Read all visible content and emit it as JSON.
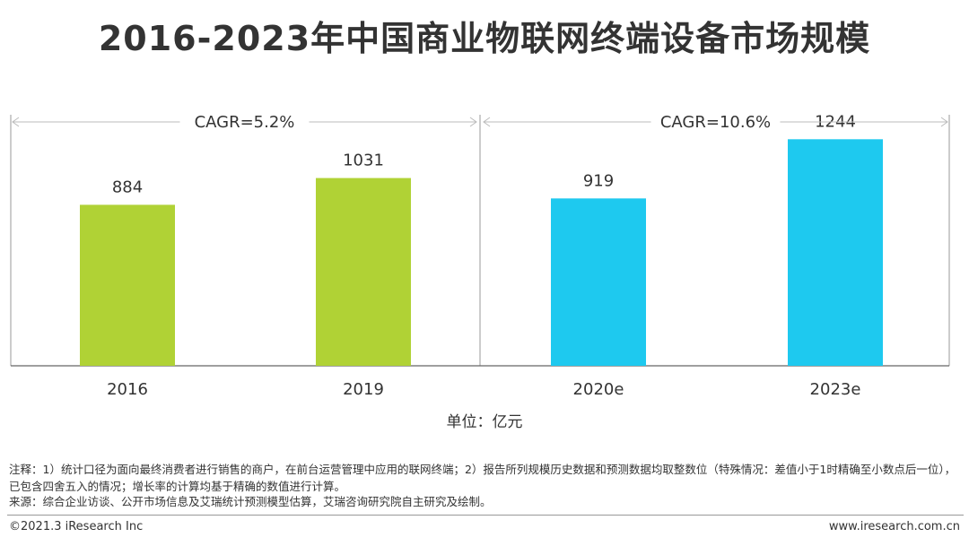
{
  "title": "2016-2023年中国商业物联网终端设备市场规模",
  "unit_label": "单位：亿元",
  "notes": {
    "note1": "注释：1）统计口径为面向最终消费者进行销售的商户，在前台运营管理中应用的联网终端；2）报告所列规模历史数据和预测数据均取整数位（特殊情况：差值小于1时精确至小数点后一位），已包含四舍五入的情况；增长率的计算均基于精确的数值进行计算。",
    "source": "来源：综合企业访谈、公开市场信息及艾瑞统计预测模型估算，艾瑞咨询研究院自主研究及绘制。"
  },
  "footer": {
    "copyright": "©2021.3 iResearch Inc",
    "website": "www.iresearch.com.cn"
  },
  "colors": {
    "green": "#b0d235",
    "blue": "#1ec9ef",
    "axis": "#999999",
    "text": "#333333"
  },
  "chart_data": {
    "type": "bar",
    "categories": [
      "2016",
      "2019",
      "2020e",
      "2023e"
    ],
    "values": [
      884,
      1031,
      919,
      1244
    ],
    "bar_colors": [
      "#b0d235",
      "#b0d235",
      "#1ec9ef",
      "#1ec9ef"
    ],
    "ylim": [
      0,
      1600
    ],
    "grid": false,
    "annotations": [
      {
        "text": "CAGR=5.2%",
        "from": "2016",
        "to": "2019"
      },
      {
        "text": "CAGR=10.6%",
        "from": "2020e",
        "to": "2023e"
      }
    ]
  }
}
